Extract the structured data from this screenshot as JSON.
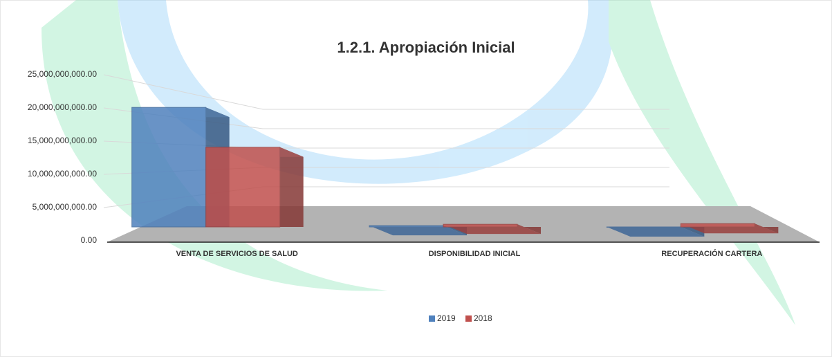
{
  "chart_data": {
    "type": "bar3d",
    "title": "1.2.1. Apropiación Inicial",
    "categories": [
      "VENTA DE SERVICIOS DE SALUD",
      "DISPONIBILIDAD INICIAL",
      "RECUPERACIÓN CARTERA"
    ],
    "series": [
      {
        "name": "2019",
        "color": "#4f81bd",
        "values": [
          18000000000,
          200000000,
          0
        ]
      },
      {
        "name": "2018",
        "color": "#c0504d",
        "values": [
          12000000000,
          400000000,
          500000000
        ]
      }
    ],
    "ylim": [
      0,
      25000000000
    ],
    "yticks": [
      {
        "value": 0,
        "label": "0.00"
      },
      {
        "value": 5000000000,
        "label": "5,000,000,000.00"
      },
      {
        "value": 10000000000,
        "label": "10,000,000,000.00"
      },
      {
        "value": 15000000000,
        "label": "15,000,000,000.00"
      },
      {
        "value": 20000000000,
        "label": "20,000,000,000.00"
      },
      {
        "value": 25000000000,
        "label": "25,000,000,000.00"
      }
    ],
    "grid": true
  }
}
